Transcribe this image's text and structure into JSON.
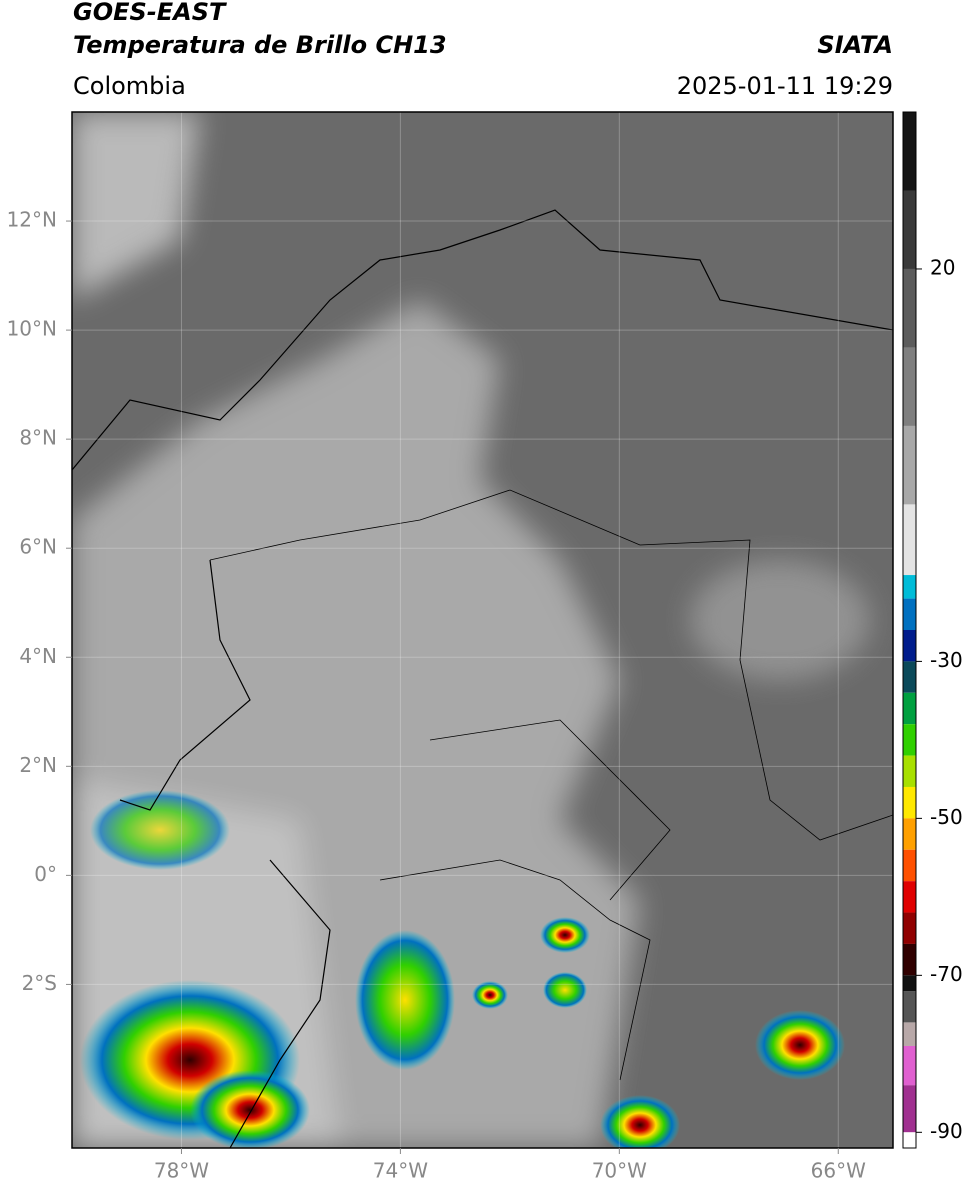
{
  "header": {
    "title": "GOES-EAST",
    "subtitle": "Temperatura de Brillo CH13",
    "source": "SIATA",
    "region": "Colombia",
    "datetime": "2025-01-11 19:29"
  },
  "map": {
    "xlim": [
      -80,
      -65
    ],
    "ylim": [
      -5,
      14
    ],
    "grid": true,
    "xticks": [
      {
        "value": -78,
        "label": "78°W"
      },
      {
        "value": -74,
        "label": "74°W"
      },
      {
        "value": -70,
        "label": "70°W"
      },
      {
        "value": -66,
        "label": "66°W"
      }
    ],
    "yticks": [
      {
        "value": 12,
        "label": "12°N"
      },
      {
        "value": 10,
        "label": "10°N"
      },
      {
        "value": 8,
        "label": "8°N"
      },
      {
        "value": 6,
        "label": "6°N"
      },
      {
        "value": 4,
        "label": "4°N"
      },
      {
        "value": 2,
        "label": "2°N"
      },
      {
        "value": 0,
        "label": "0°"
      },
      {
        "value": -2,
        "label": "2°S"
      }
    ]
  },
  "colorbar": {
    "lim": [
      -92,
      40
    ],
    "ticks": [
      20,
      -30,
      -50,
      -70,
      -90
    ],
    "bands": [
      {
        "min": 30,
        "max": 40,
        "color": "#151515"
      },
      {
        "min": 20,
        "max": 30,
        "color": "#3a3a3a"
      },
      {
        "min": 10,
        "max": 20,
        "color": "#5c5c5c"
      },
      {
        "min": 0,
        "max": 10,
        "color": "#7f7f7f"
      },
      {
        "min": -10,
        "max": 0,
        "color": "#a8a8a8"
      },
      {
        "min": -19,
        "max": -10,
        "color": "#e4e4e4"
      },
      {
        "min": -22,
        "max": -19,
        "color": "#00bcd8"
      },
      {
        "min": -26,
        "max": -22,
        "color": "#0070c0"
      },
      {
        "min": -30,
        "max": -26,
        "color": "#001c8c"
      },
      {
        "min": -34,
        "max": -30,
        "color": "#0b4a5a"
      },
      {
        "min": -38,
        "max": -34,
        "color": "#00a040"
      },
      {
        "min": -42,
        "max": -38,
        "color": "#30d000"
      },
      {
        "min": -46,
        "max": -42,
        "color": "#a8e000"
      },
      {
        "min": -50,
        "max": -46,
        "color": "#ffe800"
      },
      {
        "min": -54,
        "max": -50,
        "color": "#ffa000"
      },
      {
        "min": -58,
        "max": -54,
        "color": "#ff5000"
      },
      {
        "min": -62,
        "max": -58,
        "color": "#e00000"
      },
      {
        "min": -66,
        "max": -62,
        "color": "#900000"
      },
      {
        "min": -70,
        "max": -66,
        "color": "#300000"
      },
      {
        "min": -72,
        "max": -70,
        "color": "#111111"
      },
      {
        "min": -76,
        "max": -72,
        "color": "#555555"
      },
      {
        "min": -79,
        "max": -76,
        "color": "#b8a8a8"
      },
      {
        "min": -84,
        "max": -79,
        "color": "#e060d0"
      },
      {
        "min": -90,
        "max": -84,
        "color": "#a03090"
      },
      {
        "min": -92,
        "max": -90,
        "color": "#ffffff"
      }
    ]
  }
}
